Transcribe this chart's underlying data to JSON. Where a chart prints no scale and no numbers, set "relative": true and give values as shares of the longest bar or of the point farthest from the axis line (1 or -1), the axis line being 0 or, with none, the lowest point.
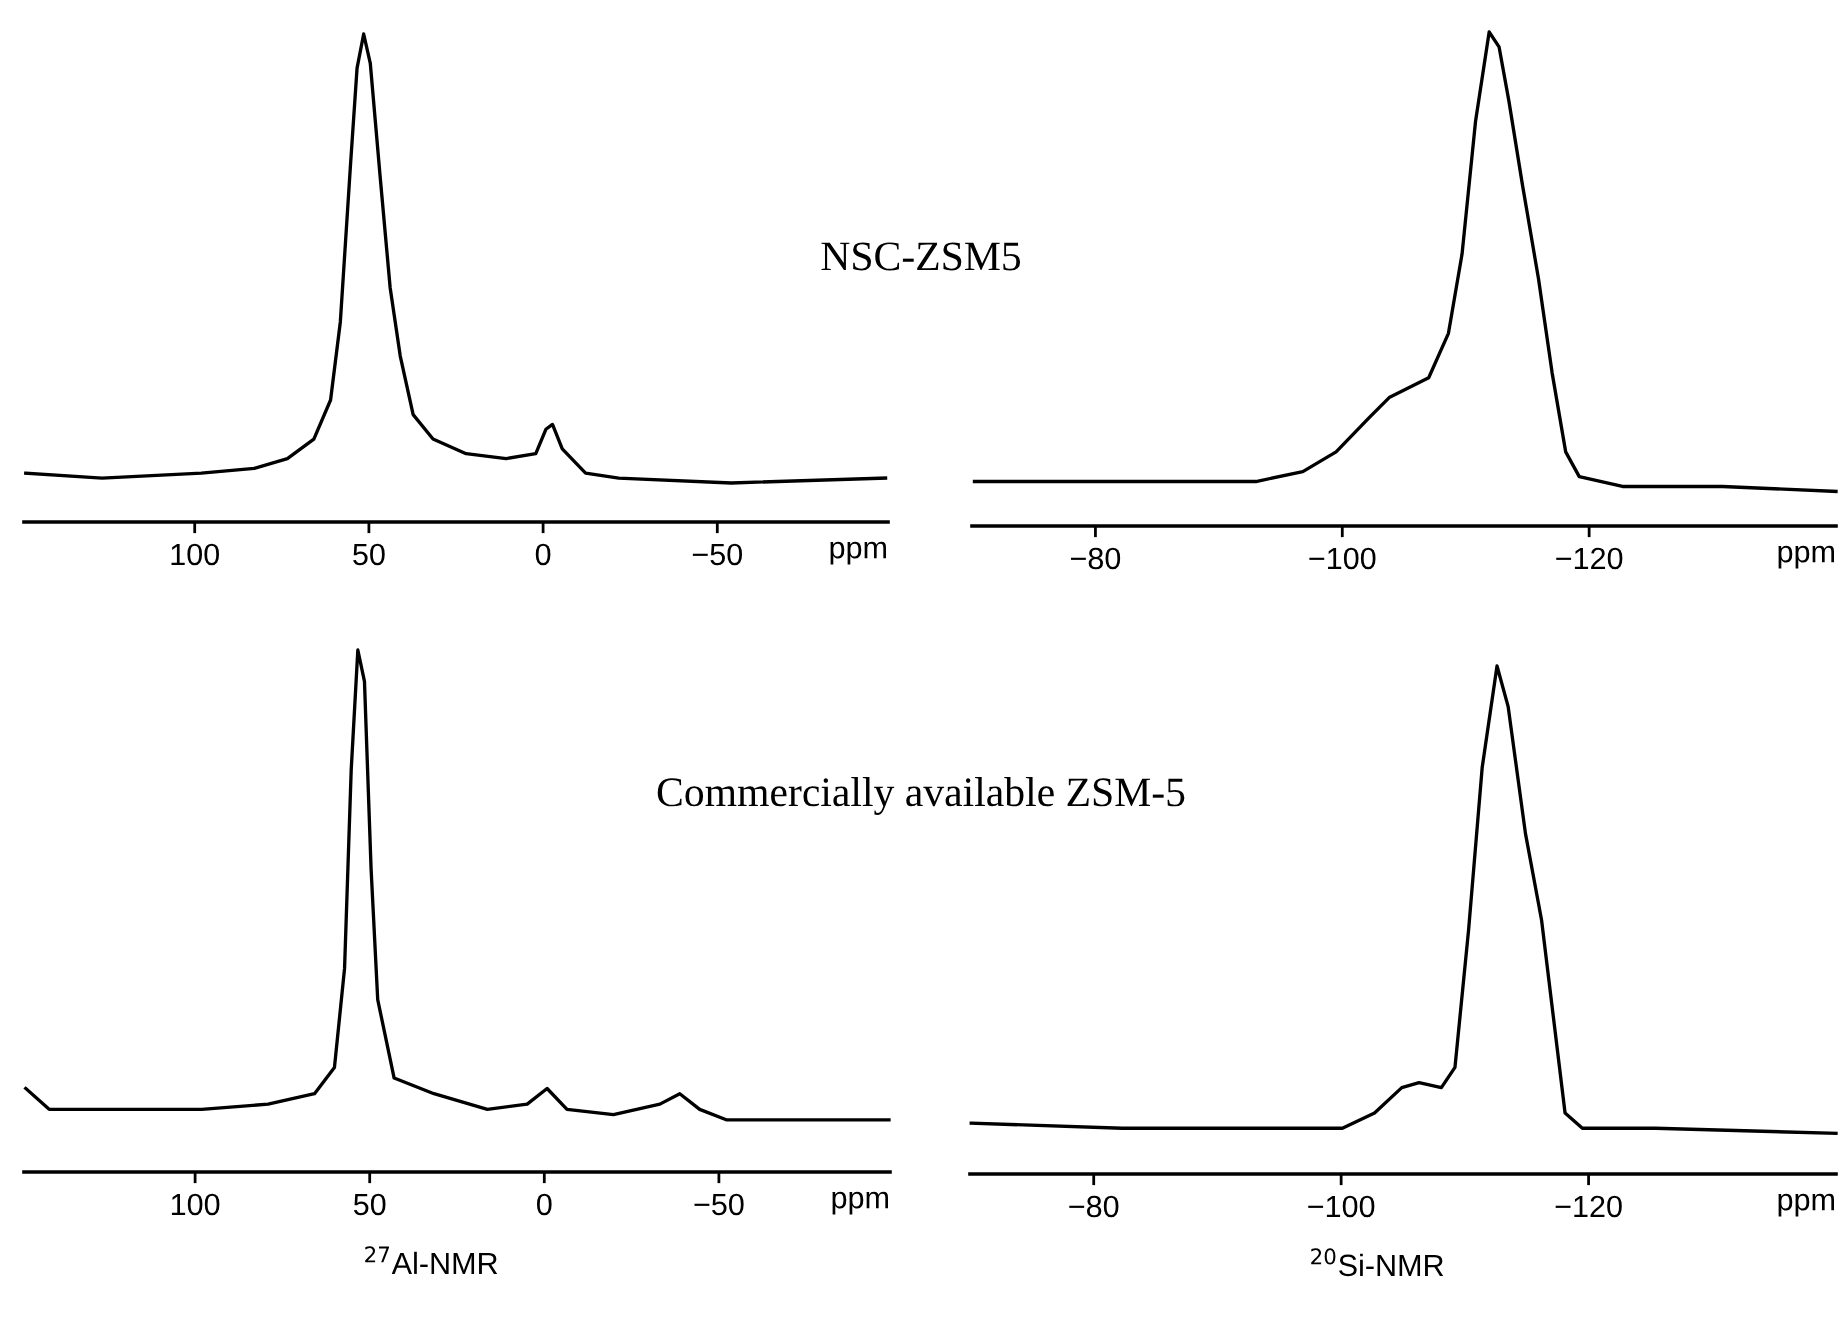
{
  "chart_data": [
    {
      "type": "line",
      "title": "NSC-ZSM5",
      "xlabel": "ppm",
      "relative": true,
      "tick_labels": "x",
      "marker": "none",
      "line_style": "solid",
      "xlim": [
        149,
        -99
      ],
      "xticks": [
        100,
        50,
        0,
        {
          "value": -50,
          "label": "−50"
        }
      ],
      "series": [
        {
          "color": "#000000",
          "x": [
            148.5,
            126.6,
            98.1,
            82.9,
            73.4,
            65.8,
            61.0,
            58.2,
            55.3,
            53.4,
            51.5,
            49.6,
            46.8,
            43.9,
            41.0,
            37.3,
            31.6,
            22.1,
            10.6,
            2.1,
            -0.8,
            -2.7,
            -5.5,
            -12.2,
            -21.7,
            -54.0,
            -98.3
          ],
          "values": [
            0.1,
            0.09,
            0.1,
            0.11,
            0.13,
            0.17,
            0.25,
            0.41,
            0.73,
            0.93,
            1.0,
            0.94,
            0.71,
            0.48,
            0.34,
            0.22,
            0.17,
            0.14,
            0.13,
            0.14,
            0.19,
            0.2,
            0.15,
            0.1,
            0.09,
            0.08,
            0.09
          ]
        }
      ]
    },
    {
      "type": "line",
      "xlabel": "ppm",
      "relative": true,
      "tick_labels": "x",
      "marker": "none",
      "line_style": "solid",
      "xlim": [
        -70,
        -140
      ],
      "xticks": [
        {
          "value": -80,
          "label": "−80"
        },
        {
          "value": -100,
          "label": "−100"
        },
        {
          "value": -120,
          "label": "−120"
        }
      ],
      "series": [
        {
          "color": "#000000",
          "x": [
            -70.2,
            -82.2,
            -93.0,
            -96.8,
            -99.5,
            -102.2,
            -103.8,
            -107.0,
            -108.6,
            -109.7,
            -110.8,
            -111.9,
            -112.7,
            -113.5,
            -114.6,
            -115.9,
            -117.0,
            -118.1,
            -119.2,
            -122.7,
            -130.8,
            -140.0
          ],
          "values": [
            0.09,
            0.09,
            0.09,
            0.11,
            0.15,
            0.22,
            0.26,
            0.3,
            0.39,
            0.55,
            0.82,
            1.0,
            0.97,
            0.86,
            0.69,
            0.5,
            0.31,
            0.15,
            0.1,
            0.08,
            0.08,
            0.07
          ]
        }
      ]
    },
    {
      "type": "line",
      "title": "Commercially available ZSM-5",
      "xlabel": "ppm",
      "annotations": [
        "$^{27}$Al-NMR"
      ],
      "relative": true,
      "tick_labels": "x",
      "marker": "none",
      "line_style": "solid",
      "xlim": [
        149,
        -99
      ],
      "xticks": [
        100,
        50,
        0,
        {
          "value": -50,
          "label": "−50"
        }
      ],
      "series": [
        {
          "color": "#000000",
          "x": [
            148.5,
            141.8,
            126.6,
            98.1,
            79.1,
            65.8,
            60.1,
            57.2,
            55.3,
            53.4,
            51.5,
            49.6,
            47.7,
            43.0,
            31.6,
            16.3,
            4.9,
            -0.8,
            -6.5,
            -19.8,
            -33.1,
            -38.8,
            -44.5,
            -52.1,
            -98.7
          ],
          "values": [
            0.16,
            0.12,
            0.12,
            0.12,
            0.13,
            0.15,
            0.2,
            0.39,
            0.77,
            1.0,
            0.94,
            0.58,
            0.33,
            0.18,
            0.15,
            0.12,
            0.13,
            0.16,
            0.12,
            0.11,
            0.13,
            0.15,
            0.12,
            0.1,
            0.1
          ]
        }
      ]
    },
    {
      "type": "line",
      "xlabel": "ppm",
      "annotations": [
        "$^{20}$Si-NMR"
      ],
      "relative": true,
      "tick_labels": "x",
      "marker": "none",
      "line_style": "solid",
      "xlim": [
        -70,
        -140
      ],
      "xticks": [
        {
          "value": -80,
          "label": "−80"
        },
        {
          "value": -100,
          "label": "−100"
        },
        {
          "value": -120,
          "label": "−120"
        }
      ],
      "series": [
        {
          "color": "#000000",
          "x": [
            -70.1,
            -82.3,
            -93.0,
            -100.1,
            -102.7,
            -104.9,
            -106.3,
            -108.1,
            -109.2,
            -110.3,
            -111.4,
            -112.6,
            -113.5,
            -114.9,
            -116.2,
            -117.3,
            -118.1,
            -119.5,
            -125.4,
            -140.0
          ],
          "values": [
            0.1,
            0.09,
            0.09,
            0.09,
            0.12,
            0.17,
            0.18,
            0.17,
            0.21,
            0.48,
            0.8,
            1.0,
            0.92,
            0.67,
            0.5,
            0.28,
            0.12,
            0.09,
            0.09,
            0.08
          ]
        }
      ]
    }
  ]
}
